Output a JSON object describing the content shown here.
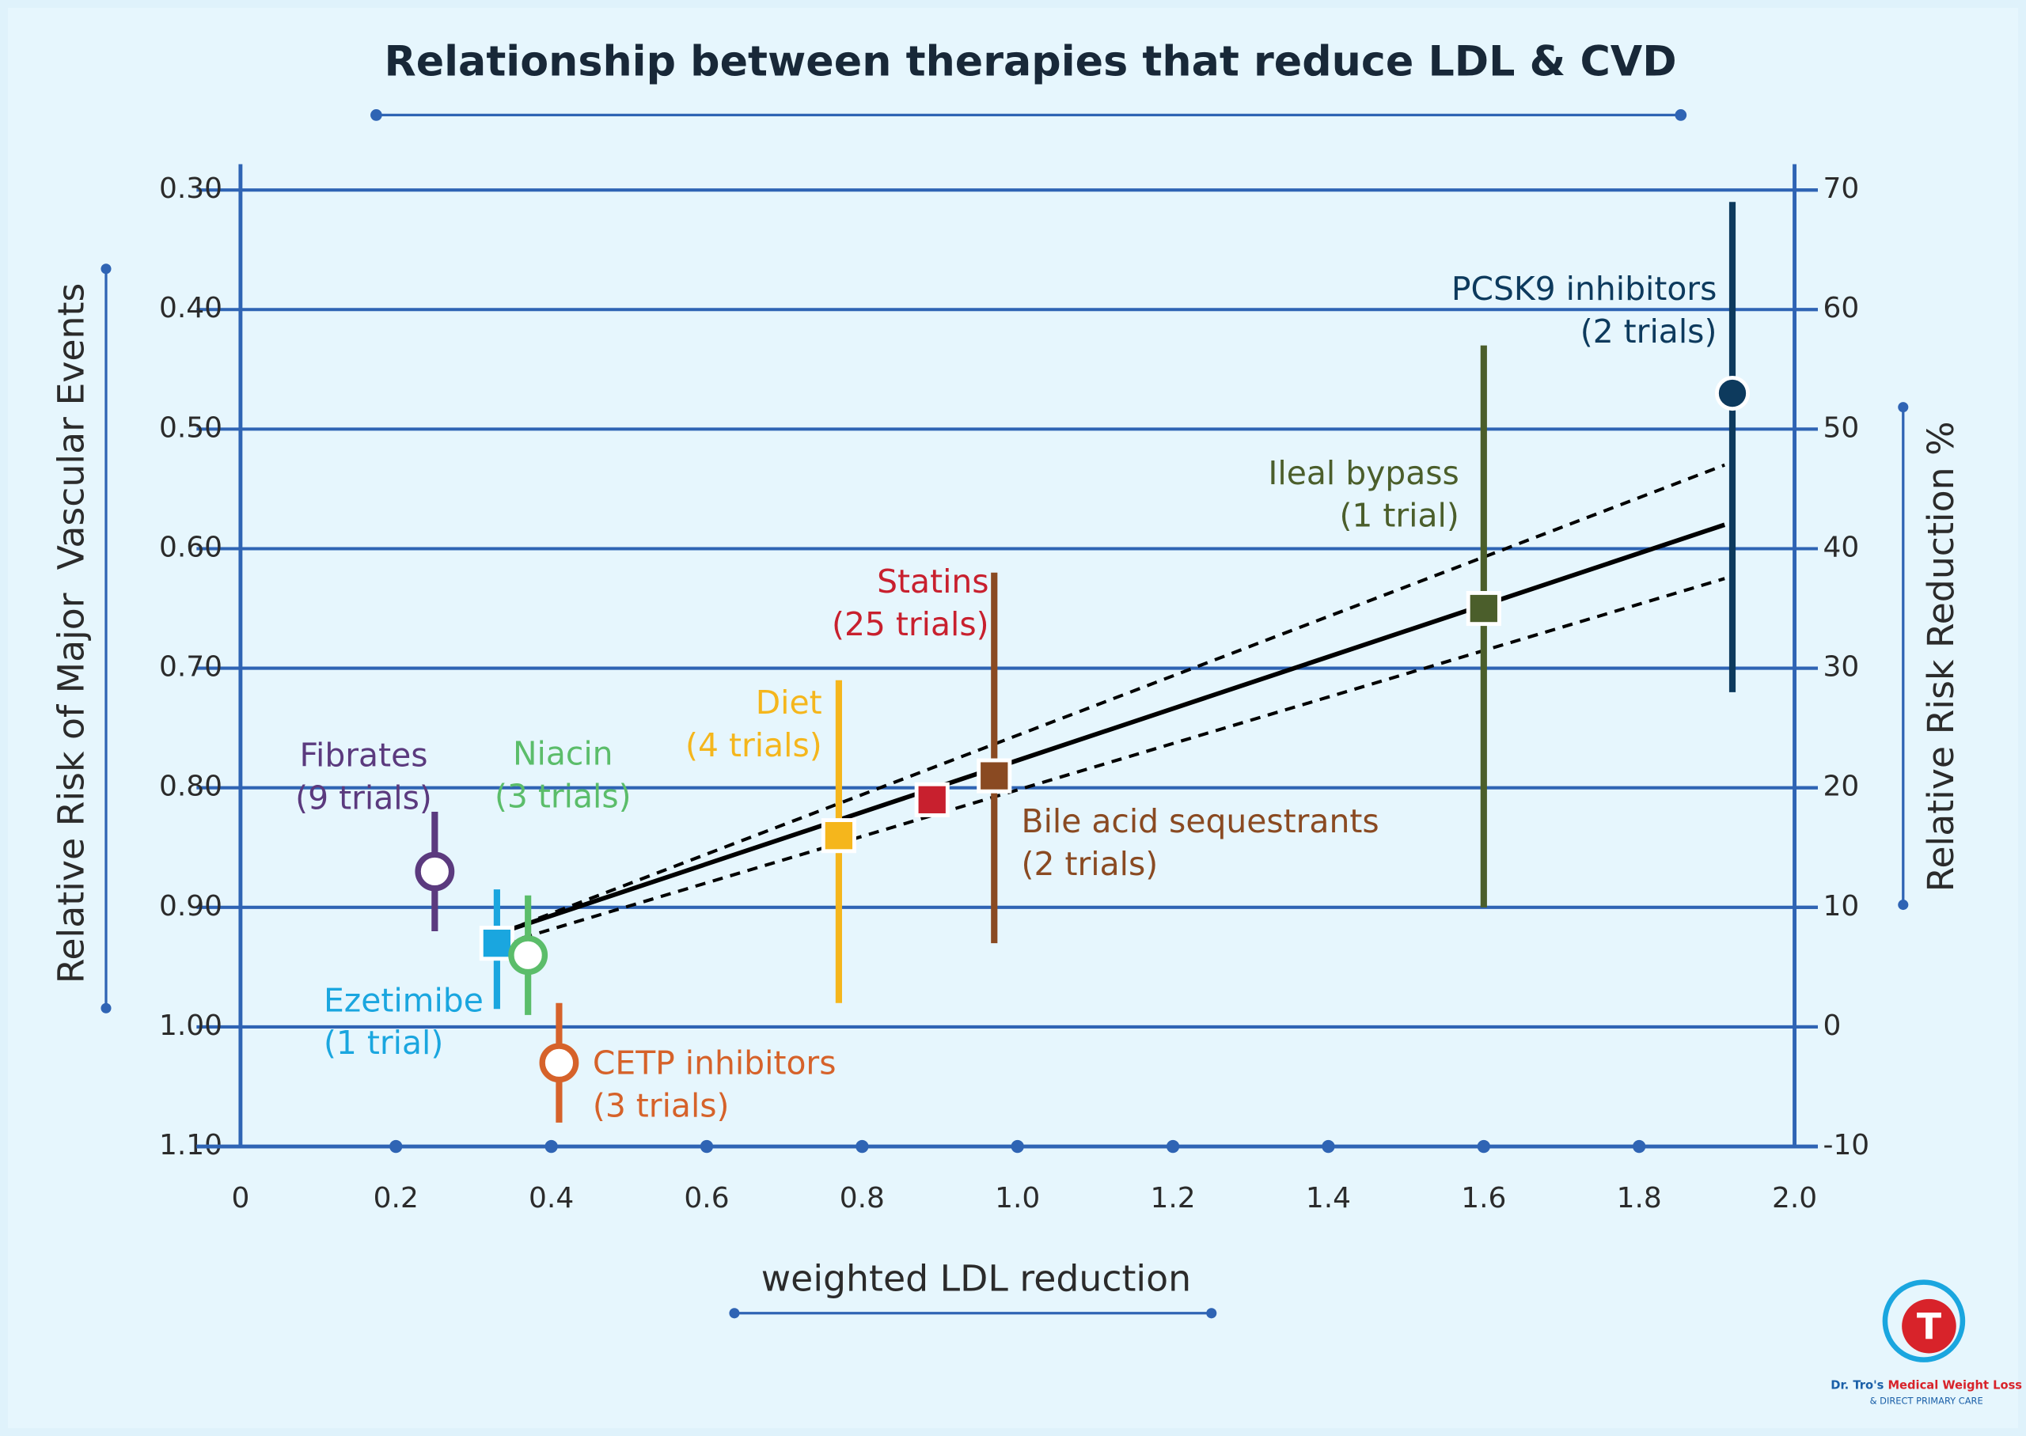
{
  "chart_data": {
    "type": "scatter",
    "title": "Relationship between therapies that reduce LDL & CVD",
    "x_label": "weighted LDL reduction",
    "y_label": "Relative Risk of Major  Vascular Events",
    "y2_label": "Relative Risk Reduction %",
    "xlim": [
      0,
      2.0
    ],
    "xticks": [
      0,
      0.2,
      0.4,
      0.6,
      0.8,
      {
        "value": 1.0,
        "label": "1.0"
      },
      1.2,
      1.4,
      1.6,
      1.8,
      {
        "value": 2.0,
        "label": "2.0"
      }
    ],
    "ylim": [
      0.3,
      1.1
    ],
    "y_inverted": true,
    "yticks": [
      {
        "value": 0.3,
        "label": "0.30"
      },
      {
        "value": 0.4,
        "label": "0.40"
      },
      {
        "value": 0.5,
        "label": "0.50"
      },
      {
        "value": 0.6,
        "label": "0.60"
      },
      {
        "value": 0.7,
        "label": "0.70"
      },
      {
        "value": 0.8,
        "label": "0.80"
      },
      {
        "value": 0.9,
        "label": "0.90"
      },
      {
        "value": 1.0,
        "label": "1.00"
      },
      {
        "value": 1.1,
        "label": "1.10"
      }
    ],
    "y2lim": [
      -10,
      70
    ],
    "y2ticks": [
      70,
      60,
      50,
      40,
      30,
      20,
      10,
      0,
      -10
    ],
    "grid": true,
    "points": {
      "names": [
        "Fibrates",
        "Ezetimibe",
        "Niacin",
        "CETP inhibitors",
        "Diet",
        "Statins",
        "Bile acid sequestrants",
        "Ileal bypass",
        "PCSK9 inhibitors"
      ],
      "notes": [
        "(9 trials)",
        "(1 trial)",
        "(3 trials)",
        "(3 trials)",
        "(4 trials)",
        "(25 trials)",
        "(2 trials)",
        "(1 trial)",
        "(2 trials)"
      ],
      "colors": [
        "#5b3a7e",
        "#1aa6df",
        "#5bbd6a",
        "#d6622a",
        "#f5b61c",
        "#c8202e",
        "#8a4a22",
        "#4b5e2b",
        "#0d3a5d"
      ],
      "markers": [
        "circle-open",
        "square",
        "circle-open",
        "circle-open",
        "square",
        "square",
        "square",
        "square",
        "circle"
      ],
      "x": [
        0.25,
        0.33,
        0.37,
        0.41,
        0.77,
        0.89,
        0.97,
        1.6,
        1.92
      ],
      "values": [
        0.87,
        0.93,
        0.94,
        1.03,
        0.84,
        0.81,
        0.79,
        0.65,
        0.47
      ],
      "lower": [
        0.82,
        0.885,
        0.89,
        0.98,
        0.71,
        null,
        0.62,
        0.43,
        0.31
      ],
      "upper": [
        0.92,
        0.985,
        0.99,
        1.08,
        0.98,
        null,
        0.93,
        0.9,
        0.72
      ]
    },
    "fit": {
      "x": [
        0.34,
        1.91
      ],
      "values": [
        0.92,
        0.58
      ],
      "color": "#000000"
    },
    "ci_upper": {
      "x": [
        0.34,
        1.91
      ],
      "values": [
        0.92,
        0.53
      ],
      "color": "#000000"
    },
    "ci_lower": {
      "x": [
        0.34,
        1.91
      ],
      "values": [
        0.93,
        0.625
      ],
      "color": "#000000"
    }
  },
  "logo": {
    "letter": "T",
    "brand": "Dr. Tro's",
    "product": "Medical Weight Loss",
    "tagline": "& DIRECT PRIMARY CARE"
  }
}
